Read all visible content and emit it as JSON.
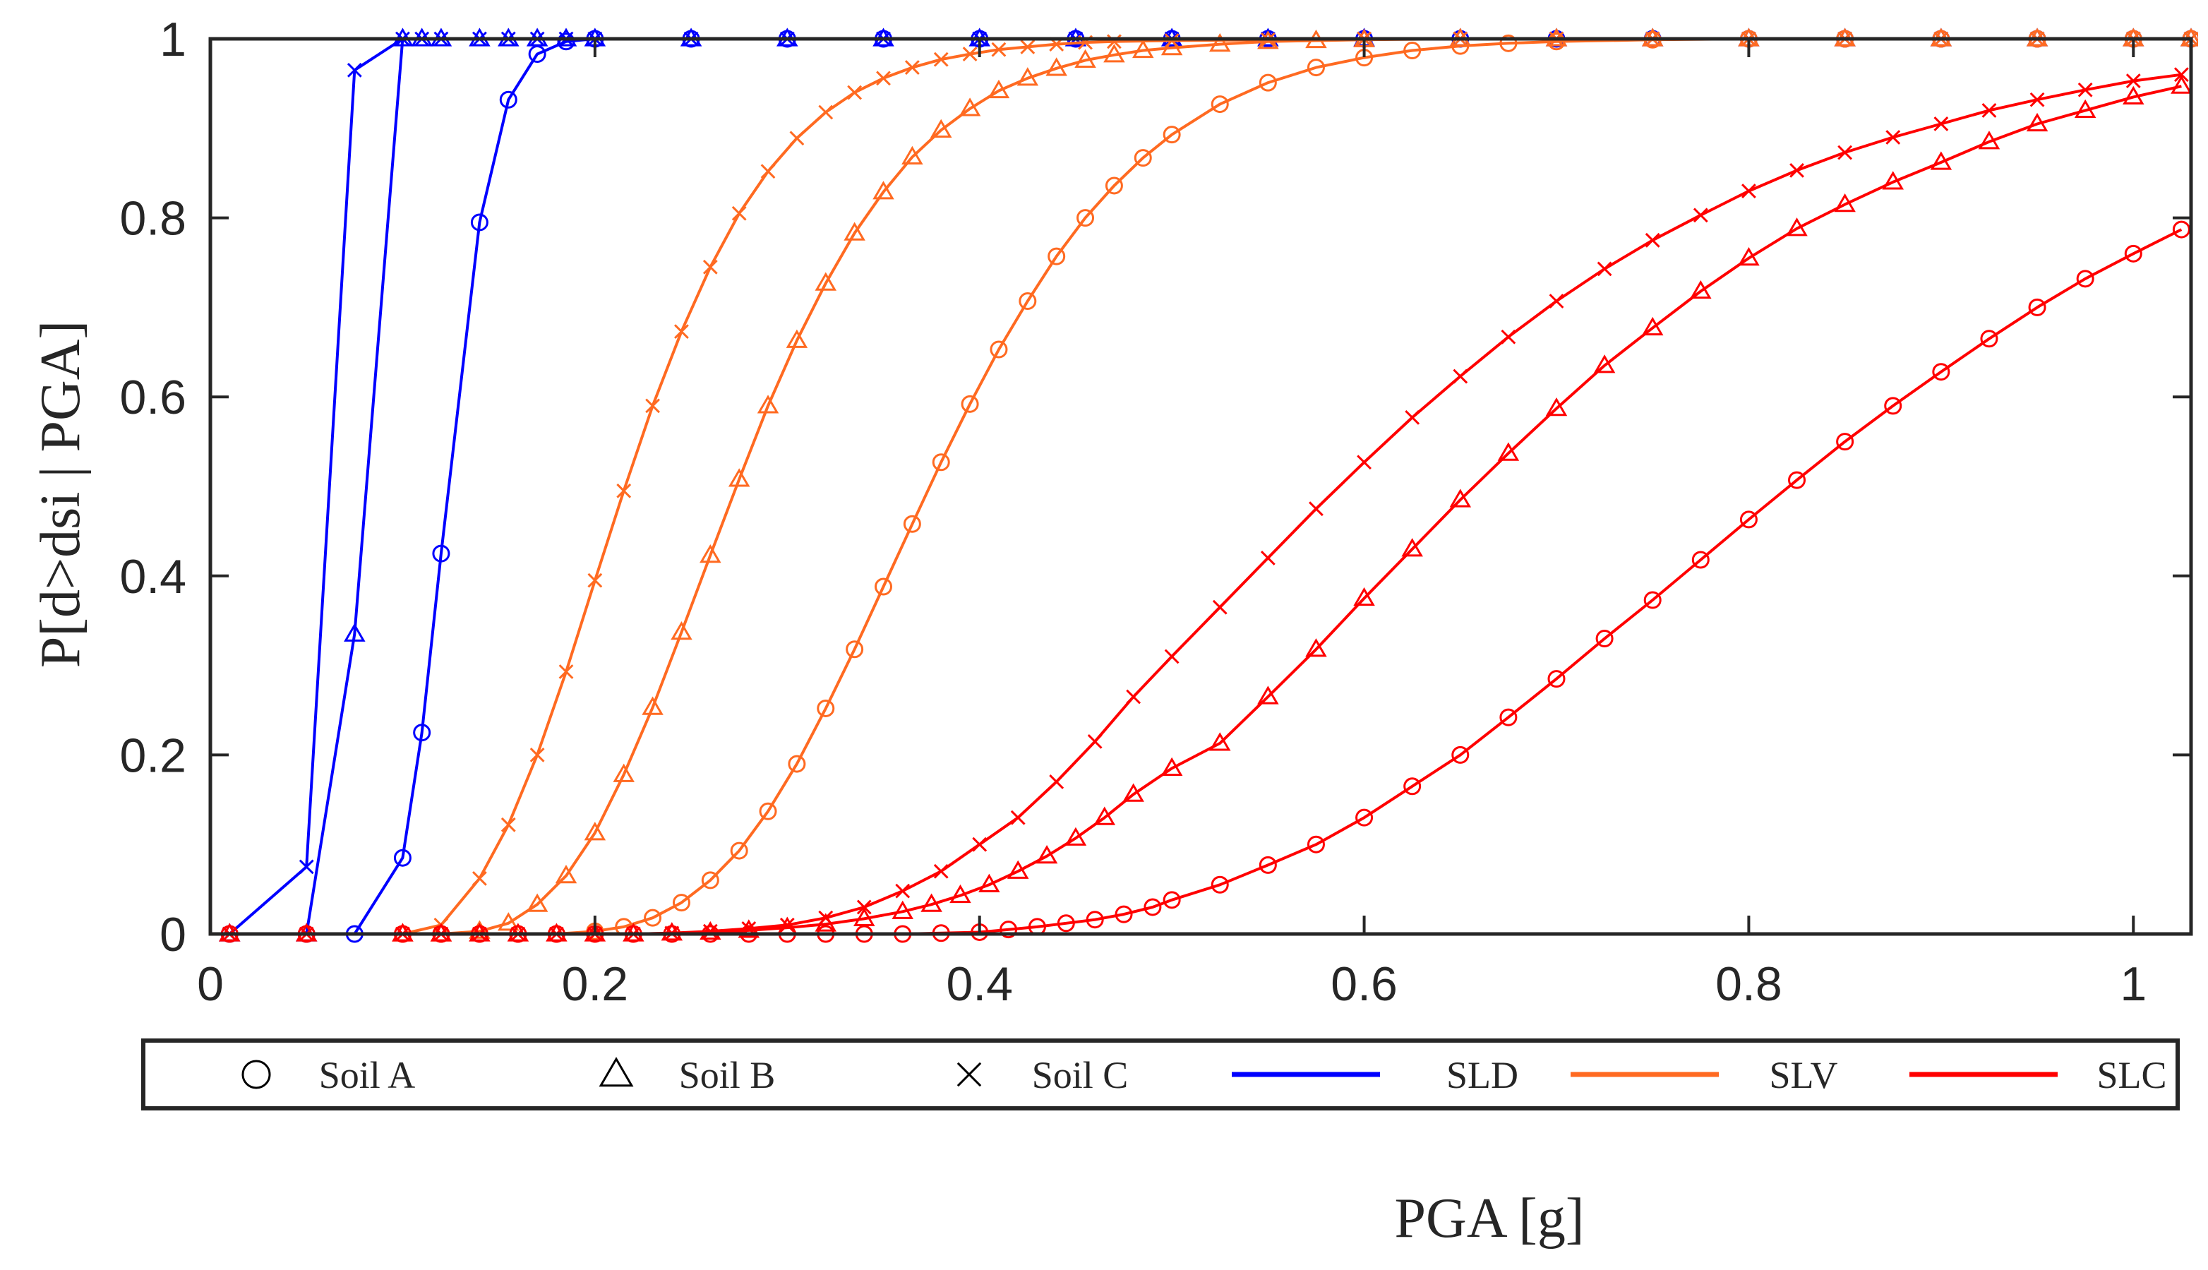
{
  "chart_data": {
    "type": "line",
    "title": "",
    "xlabel": "PGA [g]",
    "ylabel": "P[d>dsi | PGA]",
    "xlim": [
      0,
      1.03
    ],
    "ylim": [
      0,
      1
    ],
    "xticks": [
      0,
      0.2,
      0.4,
      0.6,
      0.8,
      1
    ],
    "xtick_labels": [
      "0",
      "0.2",
      "0.4",
      "0.6",
      "0.8",
      "1"
    ],
    "yticks": [
      0,
      0.2,
      0.4,
      0.6,
      0.8,
      1
    ],
    "ytick_labels": [
      "0",
      "0.2",
      "0.4",
      "0.6",
      "0.8",
      "1"
    ],
    "grid": false,
    "legend": {
      "position": "bottom",
      "entries": [
        {
          "label": "Soil A",
          "kind": "marker",
          "marker": "circle"
        },
        {
          "label": "Soil B",
          "kind": "marker",
          "marker": "triangle"
        },
        {
          "label": "Soil C",
          "kind": "marker",
          "marker": "cross"
        },
        {
          "label": "SLD",
          "kind": "line",
          "color": "#0000ff"
        },
        {
          "label": "SLV",
          "kind": "line",
          "color": "#ff6a21"
        },
        {
          "label": "SLC",
          "kind": "line",
          "color": "#ff0000"
        }
      ]
    },
    "series": [
      {
        "name": "SLD - Soil A",
        "color": "#0000ff",
        "marker": "circle",
        "x": [
          0.01,
          0.05,
          0.075,
          0.1,
          0.11,
          0.12,
          0.14,
          0.155,
          0.17,
          0.185,
          0.2,
          0.25,
          0.3,
          0.35,
          0.4,
          0.45,
          0.5,
          0.55,
          0.6,
          0.65,
          0.7,
          0.75,
          0.8,
          0.85,
          0.9,
          0.95,
          1.0,
          1.03
        ],
        "y": [
          0,
          0,
          0,
          0.085,
          0.225,
          0.425,
          0.795,
          0.932,
          0.983,
          0.997,
          1,
          1,
          1,
          1,
          1,
          1,
          1,
          1,
          1,
          1,
          1,
          1,
          1,
          1,
          1,
          1,
          1,
          1
        ]
      },
      {
        "name": "SLD - Soil B",
        "color": "#0000ff",
        "marker": "triangle",
        "x": [
          0.01,
          0.05,
          0.075,
          0.1,
          0.11,
          0.12,
          0.14,
          0.155,
          0.17,
          0.185,
          0.2,
          0.25,
          0.3,
          0.35,
          0.4,
          0.45,
          0.5,
          0.55,
          0.6,
          0.65,
          0.7,
          0.75,
          0.8,
          0.85,
          0.9,
          0.95,
          1.0,
          1.03
        ],
        "y": [
          0,
          0,
          0.335,
          1,
          1,
          1,
          1,
          1,
          1,
          1,
          1,
          1,
          1,
          1,
          1,
          1,
          1,
          1,
          1,
          1,
          1,
          1,
          1,
          1,
          1,
          1,
          1,
          1
        ]
      },
      {
        "name": "SLD - Soil C",
        "color": "#0000ff",
        "marker": "cross",
        "x": [
          0.01,
          0.05,
          0.075,
          0.1,
          0.11,
          0.12,
          0.14,
          0.155,
          0.17,
          0.185,
          0.2,
          0.25,
          0.3,
          0.35,
          0.4,
          0.45,
          0.5,
          0.55,
          0.6,
          0.65,
          0.7,
          0.75,
          0.8,
          0.85,
          0.9,
          0.95,
          1.0,
          1.03
        ],
        "y": [
          0,
          0.075,
          0.965,
          1,
          1,
          1,
          1,
          1,
          1,
          1,
          1,
          1,
          1,
          1,
          1,
          1,
          1,
          1,
          1,
          1,
          1,
          1,
          1,
          1,
          1,
          1,
          1,
          1
        ]
      },
      {
        "name": "SLV - Soil A",
        "color": "#ff6a21",
        "marker": "circle",
        "x": [
          0.1,
          0.12,
          0.14,
          0.16,
          0.18,
          0.2,
          0.215,
          0.23,
          0.245,
          0.26,
          0.275,
          0.29,
          0.305,
          0.32,
          0.335,
          0.35,
          0.365,
          0.38,
          0.395,
          0.41,
          0.425,
          0.44,
          0.455,
          0.47,
          0.485,
          0.5,
          0.525,
          0.55,
          0.575,
          0.6,
          0.625,
          0.65,
          0.675,
          0.7,
          0.75,
          0.8,
          0.85,
          0.9,
          0.95,
          1.0,
          1.03
        ],
        "y": [
          0,
          0,
          0,
          0,
          0,
          0.003,
          0.008,
          0.018,
          0.035,
          0.06,
          0.093,
          0.137,
          0.19,
          0.252,
          0.318,
          0.388,
          0.458,
          0.527,
          0.592,
          0.653,
          0.707,
          0.757,
          0.8,
          0.836,
          0.867,
          0.893,
          0.927,
          0.951,
          0.968,
          0.979,
          0.987,
          0.992,
          0.995,
          0.997,
          0.999,
          1,
          1,
          1,
          1,
          1,
          1
        ]
      },
      {
        "name": "SLV - Soil B",
        "color": "#ff6a21",
        "marker": "triangle",
        "x": [
          0.1,
          0.12,
          0.14,
          0.155,
          0.17,
          0.185,
          0.2,
          0.215,
          0.23,
          0.245,
          0.26,
          0.275,
          0.29,
          0.305,
          0.32,
          0.335,
          0.35,
          0.365,
          0.38,
          0.395,
          0.41,
          0.425,
          0.44,
          0.455,
          0.47,
          0.485,
          0.5,
          0.525,
          0.55,
          0.575,
          0.6,
          0.65,
          0.7,
          0.75,
          0.8,
          0.85,
          0.9,
          0.95,
          1.0,
          1.03
        ],
        "y": [
          0,
          0,
          0.003,
          0.012,
          0.033,
          0.065,
          0.113,
          0.178,
          0.253,
          0.337,
          0.423,
          0.508,
          0.59,
          0.663,
          0.727,
          0.783,
          0.829,
          0.868,
          0.898,
          0.922,
          0.942,
          0.956,
          0.967,
          0.976,
          0.982,
          0.987,
          0.99,
          0.994,
          0.997,
          0.998,
          0.999,
          1,
          1,
          1,
          1,
          1,
          1,
          1,
          1,
          1
        ]
      },
      {
        "name": "SLV - Soil C",
        "color": "#ff6a21",
        "marker": "cross",
        "x": [
          0.1,
          0.12,
          0.14,
          0.155,
          0.17,
          0.185,
          0.2,
          0.215,
          0.23,
          0.245,
          0.26,
          0.275,
          0.29,
          0.305,
          0.32,
          0.335,
          0.35,
          0.365,
          0.38,
          0.395,
          0.41,
          0.425,
          0.44,
          0.455,
          0.47,
          0.5,
          0.55,
          0.6,
          0.65,
          0.7,
          0.75,
          0.8,
          0.85,
          0.9,
          0.95,
          1.0,
          1.03
        ],
        "y": [
          0,
          0.01,
          0.062,
          0.122,
          0.2,
          0.293,
          0.395,
          0.495,
          0.59,
          0.673,
          0.745,
          0.805,
          0.852,
          0.889,
          0.918,
          0.94,
          0.956,
          0.968,
          0.977,
          0.983,
          0.988,
          0.991,
          0.994,
          0.996,
          0.997,
          0.998,
          0.999,
          1,
          1,
          1,
          1,
          1,
          1,
          1,
          1,
          1,
          1
        ]
      },
      {
        "name": "SLC - Soil A",
        "color": "#ff0000",
        "marker": "circle",
        "x": [
          0.01,
          0.05,
          0.1,
          0.12,
          0.14,
          0.16,
          0.18,
          0.2,
          0.22,
          0.24,
          0.26,
          0.28,
          0.3,
          0.32,
          0.34,
          0.36,
          0.38,
          0.4,
          0.415,
          0.43,
          0.445,
          0.46,
          0.475,
          0.49,
          0.5,
          0.525,
          0.55,
          0.575,
          0.6,
          0.625,
          0.65,
          0.675,
          0.7,
          0.725,
          0.75,
          0.775,
          0.8,
          0.825,
          0.85,
          0.875,
          0.9,
          0.925,
          0.95,
          0.975,
          1.0,
          1.025
        ],
        "y": [
          0,
          0,
          0,
          0,
          0,
          0,
          0,
          0,
          0,
          0,
          0,
          0,
          0,
          0,
          0,
          0,
          0.001,
          0.002,
          0.005,
          0.008,
          0.012,
          0.016,
          0.022,
          0.03,
          0.038,
          0.055,
          0.077,
          0.1,
          0.13,
          0.165,
          0.2,
          0.242,
          0.285,
          0.33,
          0.373,
          0.418,
          0.463,
          0.507,
          0.55,
          0.59,
          0.628,
          0.665,
          0.7,
          0.732,
          0.76,
          0.787
        ]
      },
      {
        "name": "SLC - Soil B",
        "color": "#ff0000",
        "marker": "triangle",
        "x": [
          0.01,
          0.05,
          0.1,
          0.12,
          0.14,
          0.16,
          0.18,
          0.2,
          0.22,
          0.24,
          0.26,
          0.28,
          0.3,
          0.32,
          0.34,
          0.36,
          0.375,
          0.39,
          0.405,
          0.42,
          0.435,
          0.45,
          0.465,
          0.48,
          0.5,
          0.525,
          0.55,
          0.575,
          0.6,
          0.625,
          0.65,
          0.675,
          0.7,
          0.725,
          0.75,
          0.775,
          0.8,
          0.825,
          0.85,
          0.875,
          0.9,
          0.925,
          0.95,
          0.975,
          1.0,
          1.025
        ],
        "y": [
          0,
          0,
          0,
          0,
          0,
          0,
          0,
          0,
          0,
          0.001,
          0.002,
          0.004,
          0.007,
          0.011,
          0.017,
          0.025,
          0.033,
          0.043,
          0.055,
          0.07,
          0.087,
          0.107,
          0.13,
          0.156,
          0.185,
          0.213,
          0.265,
          0.318,
          0.375,
          0.43,
          0.485,
          0.537,
          0.587,
          0.635,
          0.677,
          0.718,
          0.755,
          0.788,
          0.815,
          0.84,
          0.862,
          0.885,
          0.905,
          0.92,
          0.935,
          0.947
        ]
      },
      {
        "name": "SLC - Soil C",
        "color": "#ff0000",
        "marker": "cross",
        "x": [
          0.01,
          0.05,
          0.1,
          0.12,
          0.14,
          0.16,
          0.18,
          0.2,
          0.22,
          0.24,
          0.26,
          0.28,
          0.3,
          0.32,
          0.34,
          0.36,
          0.38,
          0.4,
          0.42,
          0.44,
          0.46,
          0.48,
          0.5,
          0.525,
          0.55,
          0.575,
          0.6,
          0.625,
          0.65,
          0.675,
          0.7,
          0.725,
          0.75,
          0.775,
          0.8,
          0.825,
          0.85,
          0.875,
          0.9,
          0.925,
          0.95,
          0.975,
          1.0,
          1.025
        ],
        "y": [
          0,
          0,
          0,
          0,
          0,
          0,
          0,
          0,
          0,
          0.001,
          0.003,
          0.006,
          0.01,
          0.018,
          0.03,
          0.048,
          0.07,
          0.1,
          0.13,
          0.17,
          0.215,
          0.265,
          0.31,
          0.365,
          0.42,
          0.475,
          0.527,
          0.577,
          0.623,
          0.667,
          0.707,
          0.743,
          0.775,
          0.803,
          0.83,
          0.853,
          0.873,
          0.89,
          0.905,
          0.92,
          0.932,
          0.943,
          0.953,
          0.96
        ]
      }
    ]
  }
}
